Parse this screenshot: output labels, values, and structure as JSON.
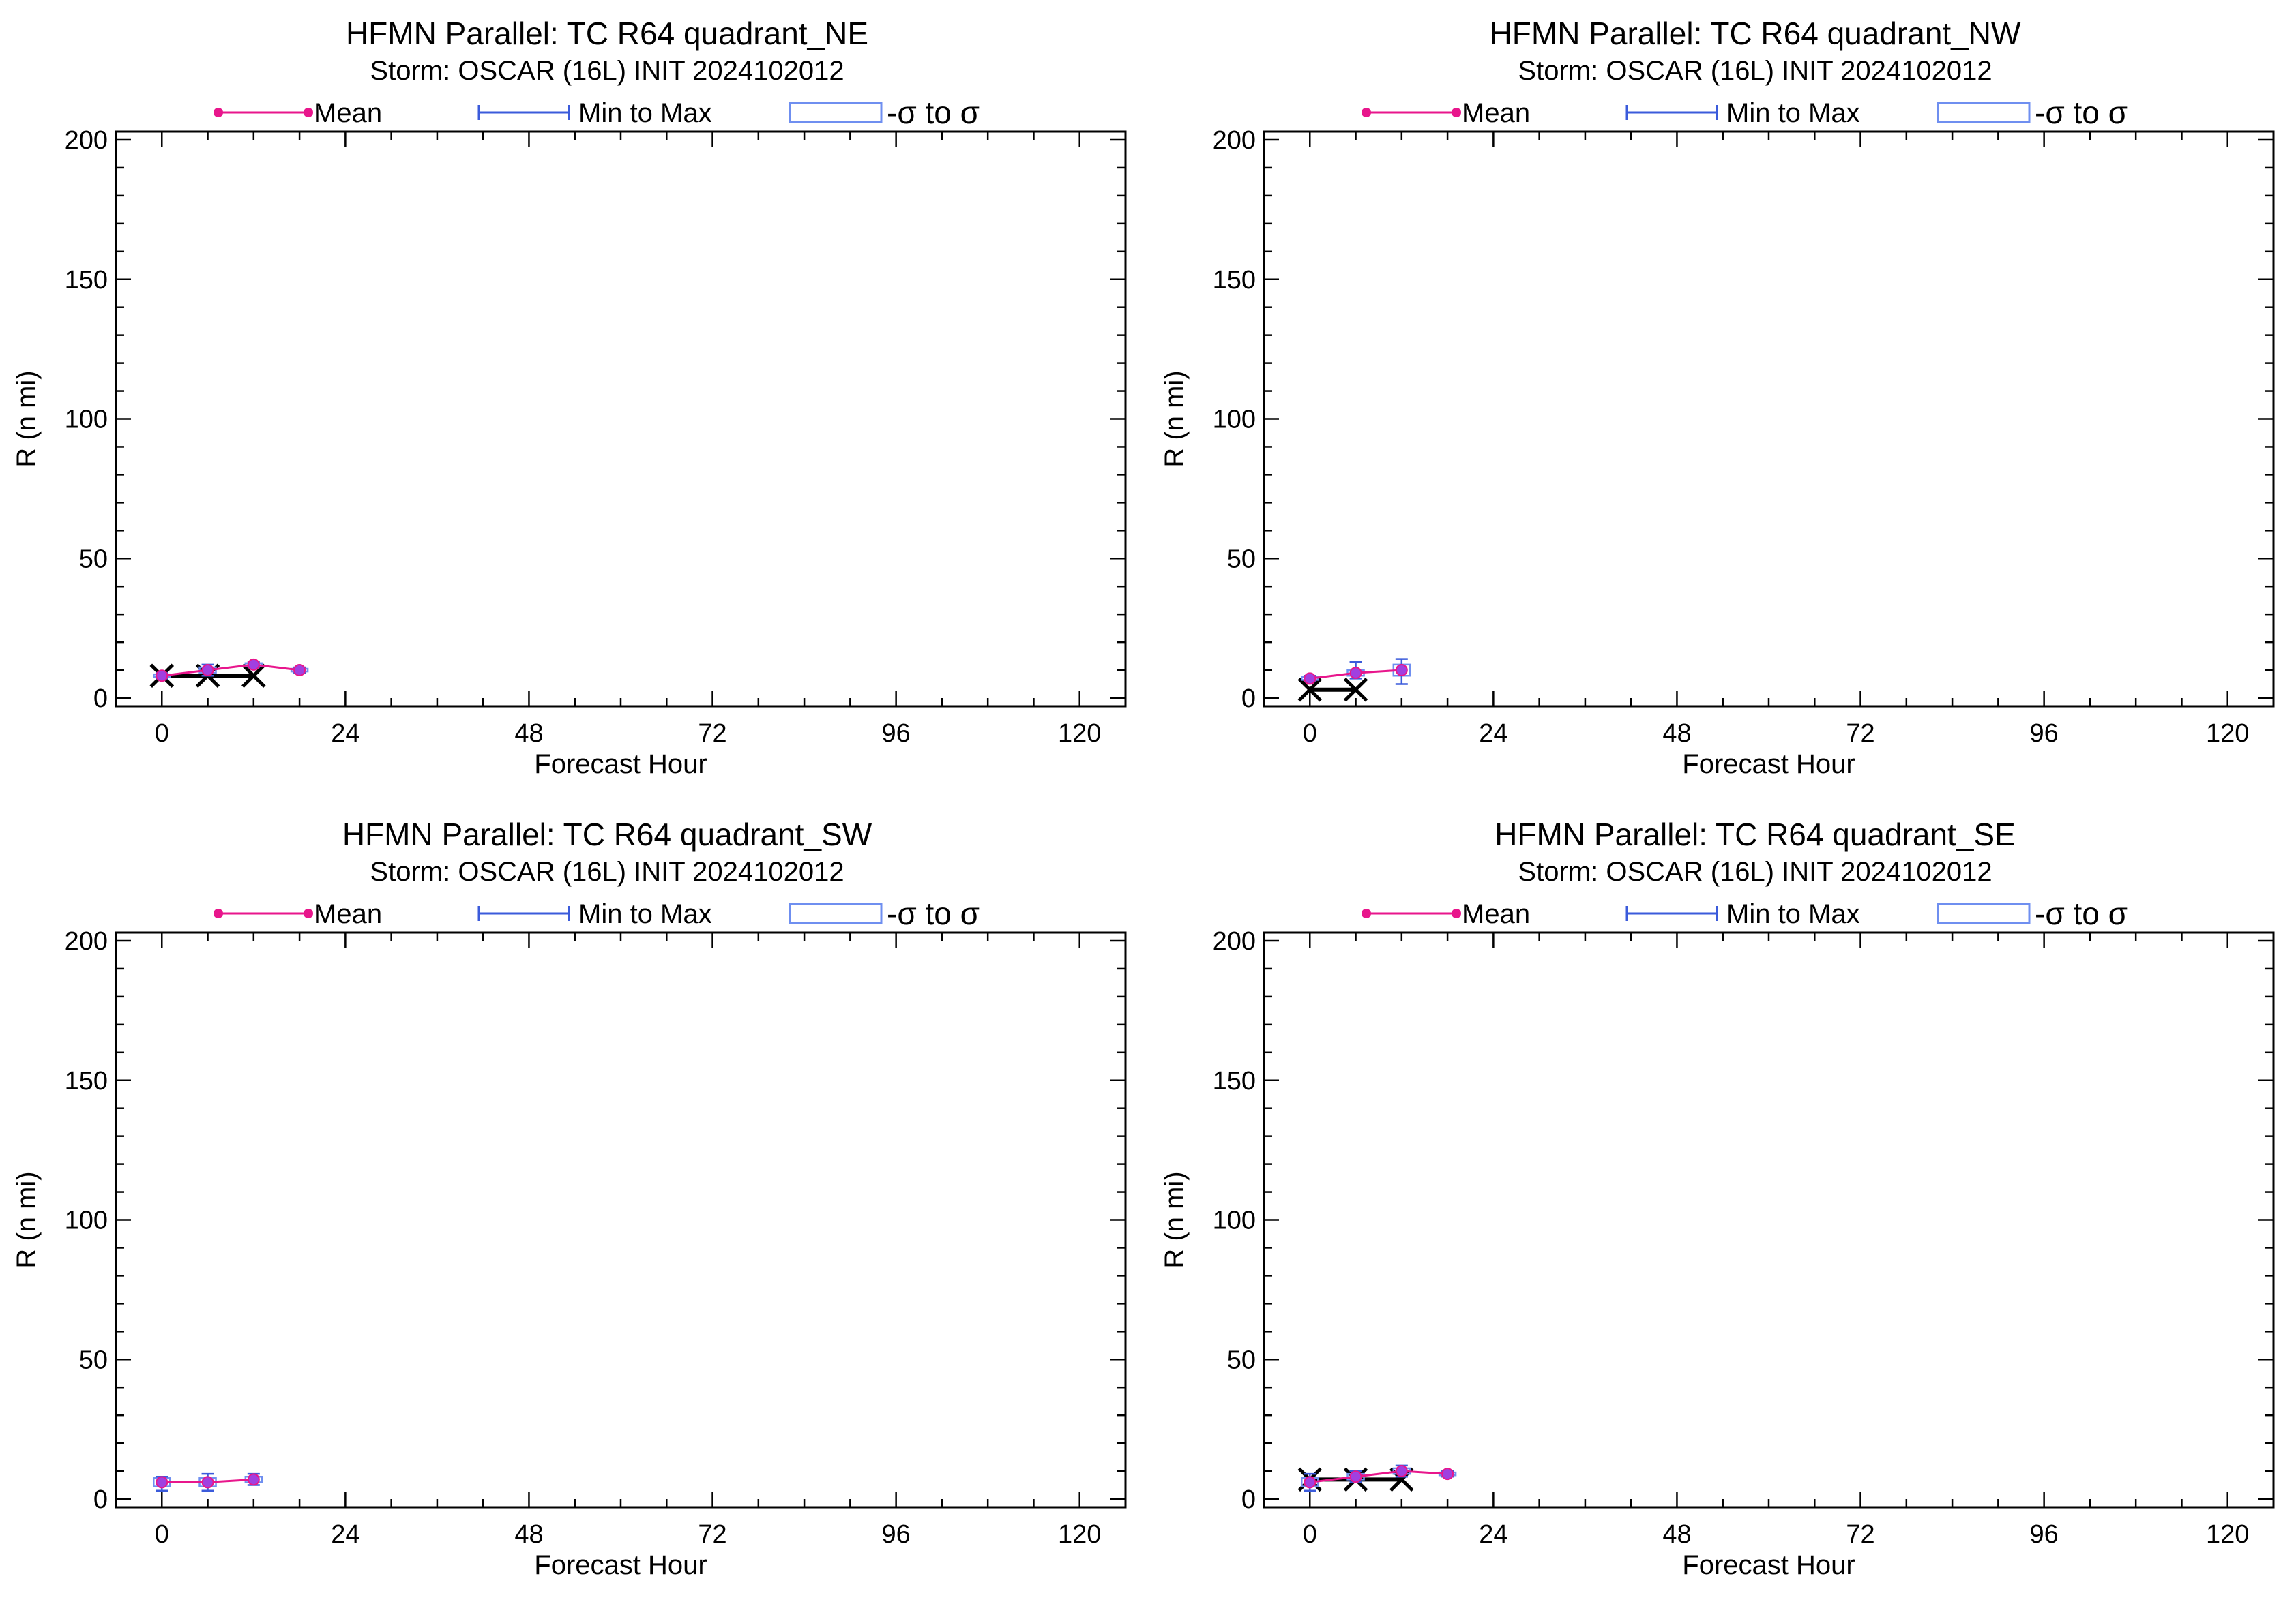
{
  "colors": {
    "mean": "#e8168c",
    "minmax": "#3b5bdb",
    "sigma_box": "#6f8ff0",
    "observed": "#000000",
    "marker_fill": "#a040e0",
    "axes": "#000000"
  },
  "legend": {
    "mean_label": "Mean",
    "minmax_label": "Min to Max",
    "sigma_label": "-σ to σ"
  },
  "chart_data": [
    {
      "type": "line",
      "title": "HFMN Parallel: TC  R64 quadrant_NE",
      "subtitle": "Storm: OSCAR (16L) INIT 2024102012",
      "xlabel": "Forecast Hour",
      "ylabel": "R (n mi)",
      "xlim": [
        -6,
        126
      ],
      "ylim": [
        0,
        200
      ],
      "xticks": [
        0,
        24,
        48,
        72,
        96,
        120
      ],
      "yticks": [
        0,
        50,
        100,
        150,
        200
      ],
      "grid": false,
      "legend_position": "top",
      "mean": [
        {
          "x": 0,
          "y": 8
        },
        {
          "x": 6,
          "y": 10
        },
        {
          "x": 12,
          "y": 12
        },
        {
          "x": 18,
          "y": 10
        }
      ],
      "min_max": [
        {
          "x": 0,
          "min": 7,
          "max": 9
        },
        {
          "x": 6,
          "min": 8,
          "max": 12
        },
        {
          "x": 12,
          "min": 11,
          "max": 13
        },
        {
          "x": 18,
          "min": 9,
          "max": 11
        }
      ],
      "sigma": [
        {
          "x": 0,
          "lo": 7.5,
          "hi": 8.5
        },
        {
          "x": 6,
          "lo": 9,
          "hi": 11
        },
        {
          "x": 12,
          "lo": 11.5,
          "hi": 12.5
        },
        {
          "x": 18,
          "lo": 9.5,
          "hi": 10.5
        }
      ],
      "observed": [
        {
          "x": 0,
          "y": 8
        },
        {
          "x": 6,
          "y": 8
        },
        {
          "x": 12,
          "y": 8
        }
      ]
    },
    {
      "type": "line",
      "title": "HFMN Parallel: TC  R64 quadrant_NW",
      "subtitle": "Storm: OSCAR (16L) INIT 2024102012",
      "xlabel": "Forecast Hour",
      "ylabel": "R (n mi)",
      "xlim": [
        -6,
        126
      ],
      "ylim": [
        0,
        200
      ],
      "xticks": [
        0,
        24,
        48,
        72,
        96,
        120
      ],
      "yticks": [
        0,
        50,
        100,
        150,
        200
      ],
      "grid": false,
      "legend_position": "top",
      "mean": [
        {
          "x": 0,
          "y": 7
        },
        {
          "x": 6,
          "y": 9
        },
        {
          "x": 12,
          "y": 10
        }
      ],
      "min_max": [
        {
          "x": 0,
          "min": 6,
          "max": 8
        },
        {
          "x": 6,
          "min": 7,
          "max": 13
        },
        {
          "x": 12,
          "min": 5,
          "max": 14
        }
      ],
      "sigma": [
        {
          "x": 0,
          "lo": 6.5,
          "hi": 7.5
        },
        {
          "x": 6,
          "lo": 8,
          "hi": 10
        },
        {
          "x": 12,
          "lo": 8,
          "hi": 12
        }
      ],
      "observed": [
        {
          "x": 0,
          "y": 3
        },
        {
          "x": 6,
          "y": 3
        }
      ]
    },
    {
      "type": "line",
      "title": "HFMN Parallel: TC  R64 quadrant_SW",
      "subtitle": "Storm: OSCAR (16L) INIT 2024102012",
      "xlabel": "Forecast Hour",
      "ylabel": "R (n mi)",
      "xlim": [
        -6,
        126
      ],
      "ylim": [
        0,
        200
      ],
      "xticks": [
        0,
        24,
        48,
        72,
        96,
        120
      ],
      "yticks": [
        0,
        50,
        100,
        150,
        200
      ],
      "grid": false,
      "legend_position": "top",
      "mean": [
        {
          "x": 0,
          "y": 6
        },
        {
          "x": 6,
          "y": 6
        },
        {
          "x": 12,
          "y": 7
        }
      ],
      "min_max": [
        {
          "x": 0,
          "min": 3,
          "max": 8
        },
        {
          "x": 6,
          "min": 3,
          "max": 9
        },
        {
          "x": 12,
          "min": 5,
          "max": 9
        }
      ],
      "sigma": [
        {
          "x": 0,
          "lo": 4.5,
          "hi": 7.5
        },
        {
          "x": 6,
          "lo": 4.5,
          "hi": 7.5
        },
        {
          "x": 12,
          "lo": 6,
          "hi": 8
        }
      ],
      "observed": []
    },
    {
      "type": "line",
      "title": "HFMN Parallel: TC  R64 quadrant_SE",
      "subtitle": "Storm: OSCAR (16L) INIT 2024102012",
      "xlabel": "Forecast Hour",
      "ylabel": "R (n mi)",
      "xlim": [
        -6,
        126
      ],
      "ylim": [
        0,
        200
      ],
      "xticks": [
        0,
        24,
        48,
        72,
        96,
        120
      ],
      "yticks": [
        0,
        50,
        100,
        150,
        200
      ],
      "grid": false,
      "legend_position": "top",
      "mean": [
        {
          "x": 0,
          "y": 6
        },
        {
          "x": 6,
          "y": 8
        },
        {
          "x": 12,
          "y": 10
        },
        {
          "x": 18,
          "y": 9
        }
      ],
      "min_max": [
        {
          "x": 0,
          "min": 3,
          "max": 9
        },
        {
          "x": 6,
          "min": 6,
          "max": 10
        },
        {
          "x": 12,
          "min": 8,
          "max": 12
        },
        {
          "x": 18,
          "min": 8,
          "max": 10
        }
      ],
      "sigma": [
        {
          "x": 0,
          "lo": 4.5,
          "hi": 7.5
        },
        {
          "x": 6,
          "lo": 7,
          "hi": 9
        },
        {
          "x": 12,
          "lo": 9,
          "hi": 11
        },
        {
          "x": 18,
          "lo": 8.5,
          "hi": 9.5
        }
      ],
      "observed": [
        {
          "x": 0,
          "y": 7
        },
        {
          "x": 6,
          "y": 7
        },
        {
          "x": 12,
          "y": 7
        }
      ]
    }
  ]
}
